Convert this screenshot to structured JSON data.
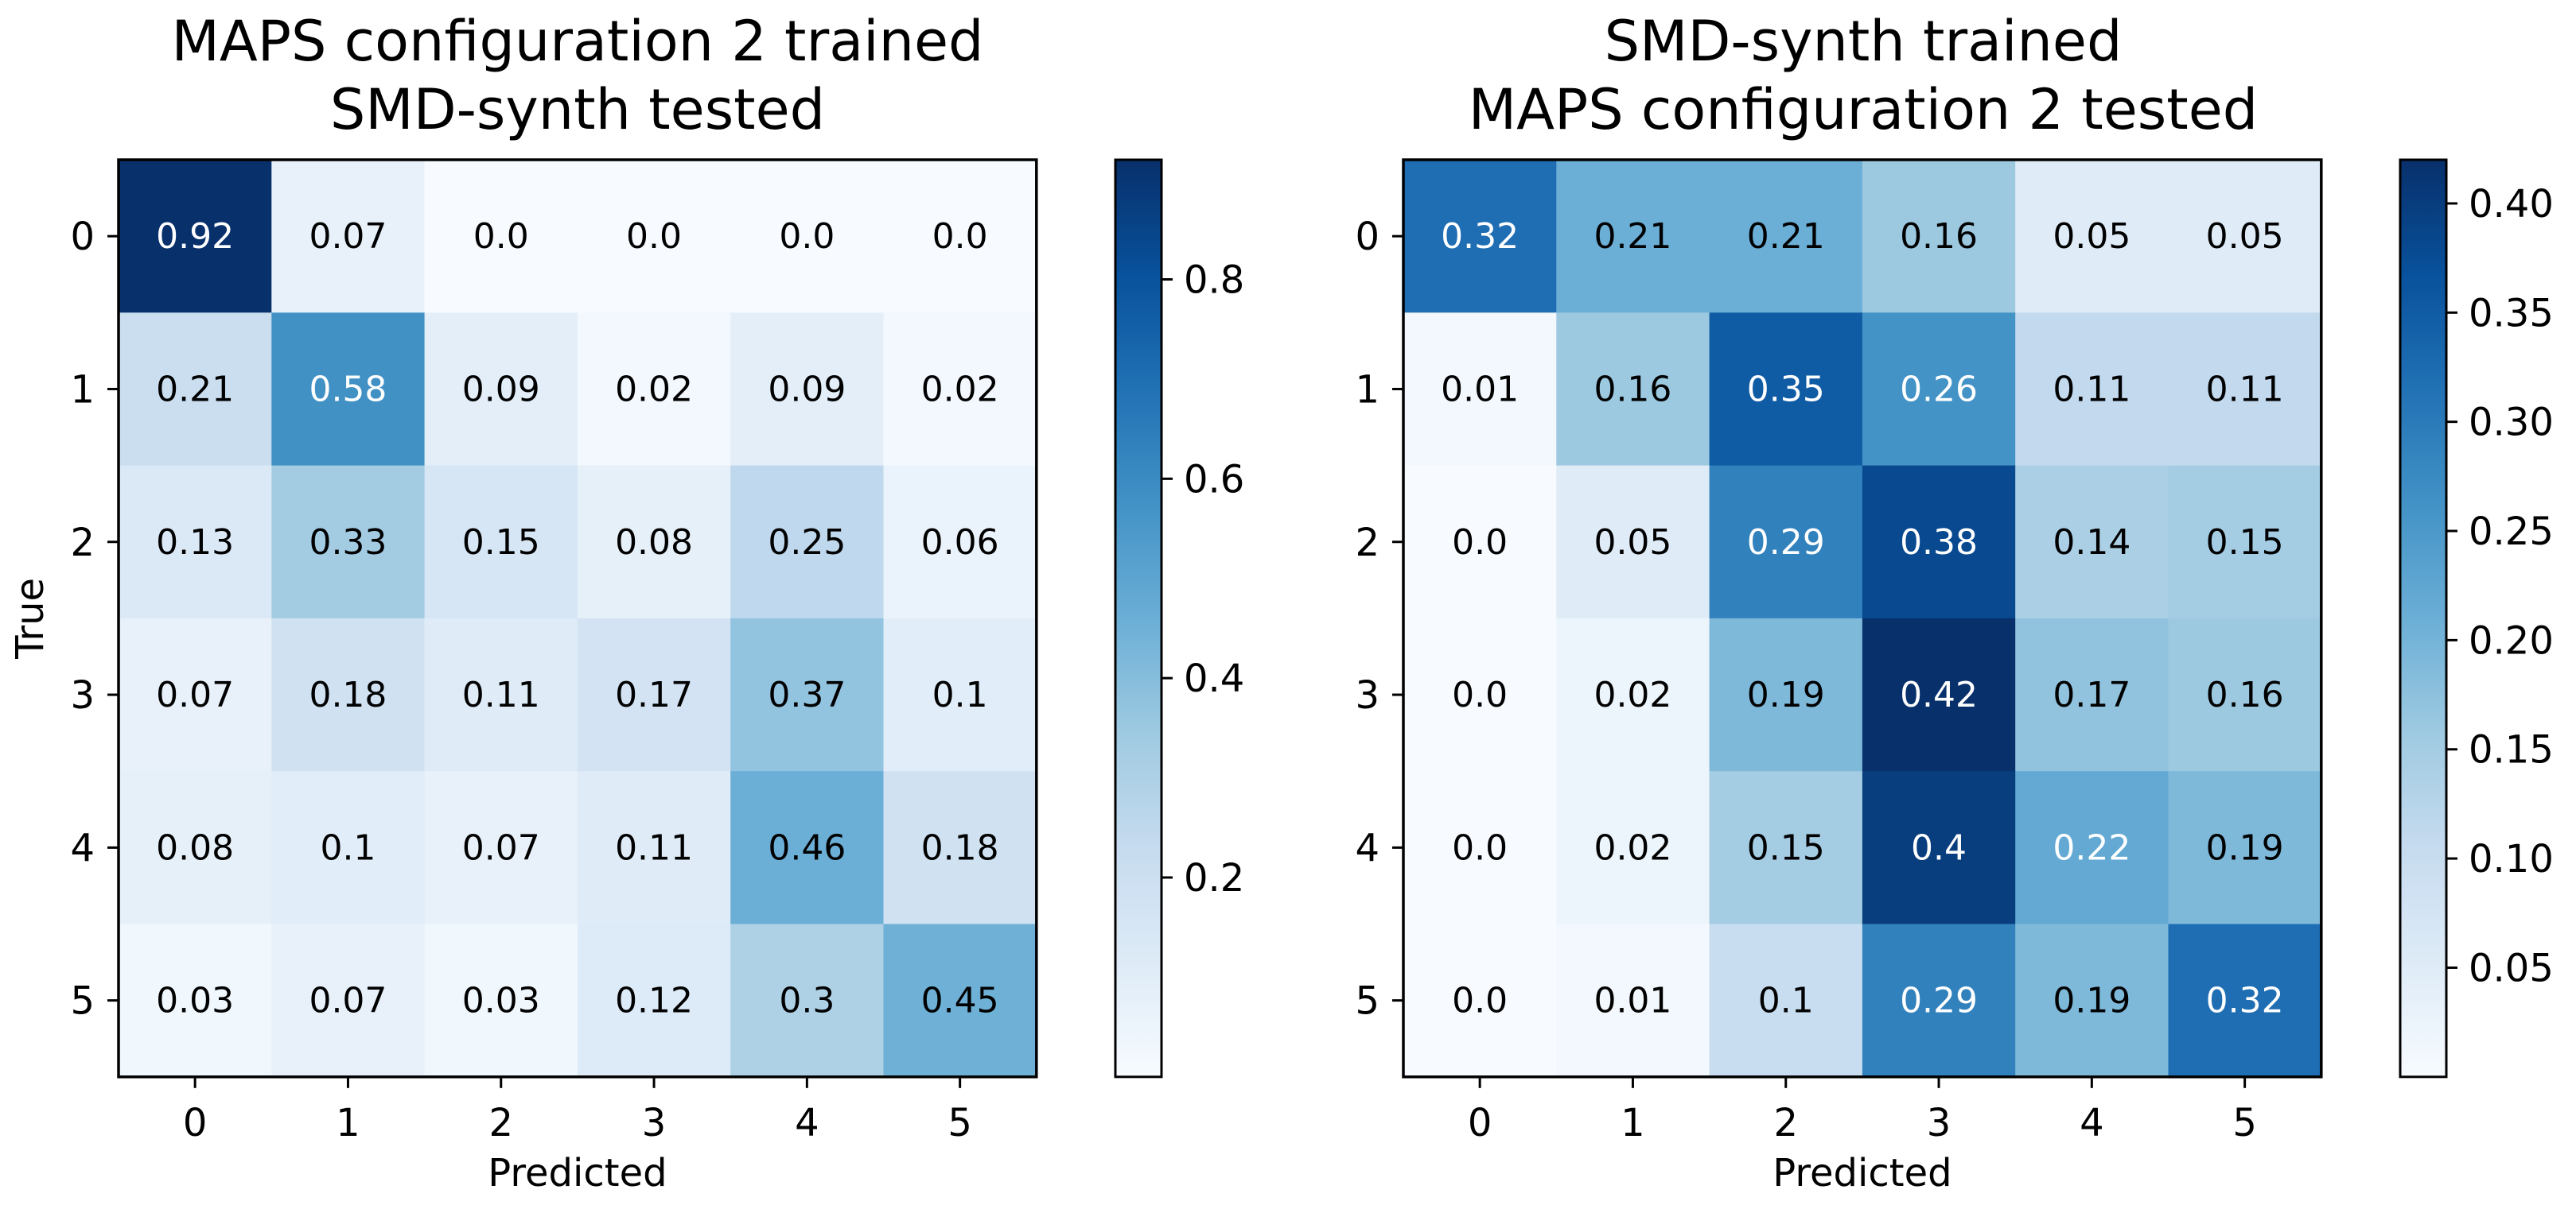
{
  "chart_data": [
    {
      "type": "heatmap",
      "title_lines": [
        "MAPS configuration 2 trained",
        "SMD-synth tested"
      ],
      "xlabel": "Predicted",
      "ylabel": "True",
      "x_ticks": [
        "0",
        "1",
        "2",
        "3",
        "4",
        "5"
      ],
      "y_ticks": [
        "0",
        "1",
        "2",
        "3",
        "4",
        "5"
      ],
      "values": [
        [
          0.92,
          0.07,
          0.0,
          0.0,
          0.0,
          0.0
        ],
        [
          0.21,
          0.58,
          0.09,
          0.02,
          0.09,
          0.02
        ],
        [
          0.13,
          0.33,
          0.15,
          0.08,
          0.25,
          0.06
        ],
        [
          0.07,
          0.18,
          0.11,
          0.17,
          0.37,
          0.1
        ],
        [
          0.08,
          0.1,
          0.07,
          0.11,
          0.46,
          0.18
        ],
        [
          0.03,
          0.07,
          0.03,
          0.12,
          0.3,
          0.45
        ]
      ],
      "value_labels": [
        [
          "0.92",
          "0.07",
          "0.0",
          "0.0",
          "0.0",
          "0.0"
        ],
        [
          "0.21",
          "0.58",
          "0.09",
          "0.02",
          "0.09",
          "0.02"
        ],
        [
          "0.13",
          "0.33",
          "0.15",
          "0.08",
          "0.25",
          "0.06"
        ],
        [
          "0.07",
          "0.18",
          "0.11",
          "0.17",
          "0.37",
          "0.1"
        ],
        [
          "0.08",
          "0.1",
          "0.07",
          "0.11",
          "0.46",
          "0.18"
        ],
        [
          "0.03",
          "0.07",
          "0.03",
          "0.12",
          "0.3",
          "0.45"
        ]
      ],
      "color_range": [
        0.0,
        0.92
      ],
      "colorbar_ticks": [
        0.2,
        0.4,
        0.6,
        0.8
      ],
      "colorbar_tick_labels": [
        "0.2",
        "0.4",
        "0.6",
        "0.8"
      ],
      "colormap": "Blues"
    },
    {
      "type": "heatmap",
      "title_lines": [
        "SMD-synth trained",
        "MAPS configuration 2 tested"
      ],
      "xlabel": "Predicted",
      "ylabel": "",
      "x_ticks": [
        "0",
        "1",
        "2",
        "3",
        "4",
        "5"
      ],
      "y_ticks": [
        "0",
        "1",
        "2",
        "3",
        "4",
        "5"
      ],
      "values": [
        [
          0.32,
          0.21,
          0.21,
          0.16,
          0.05,
          0.05
        ],
        [
          0.01,
          0.16,
          0.35,
          0.26,
          0.11,
          0.11
        ],
        [
          0.0,
          0.05,
          0.29,
          0.38,
          0.14,
          0.15
        ],
        [
          0.0,
          0.02,
          0.19,
          0.42,
          0.17,
          0.16
        ],
        [
          0.0,
          0.02,
          0.15,
          0.4,
          0.22,
          0.19
        ],
        [
          0.0,
          0.01,
          0.1,
          0.29,
          0.19,
          0.32
        ]
      ],
      "value_labels": [
        [
          "0.32",
          "0.21",
          "0.21",
          "0.16",
          "0.05",
          "0.05"
        ],
        [
          "0.01",
          "0.16",
          "0.35",
          "0.26",
          "0.11",
          "0.11"
        ],
        [
          "0.0",
          "0.05",
          "0.29",
          "0.38",
          "0.14",
          "0.15"
        ],
        [
          "0.0",
          "0.02",
          "0.19",
          "0.42",
          "0.17",
          "0.16"
        ],
        [
          "0.0",
          "0.02",
          "0.15",
          "0.4",
          "0.22",
          "0.19"
        ],
        [
          "0.0",
          "0.01",
          "0.1",
          "0.29",
          "0.19",
          "0.32"
        ]
      ],
      "color_range": [
        0.0,
        0.42
      ],
      "colorbar_ticks": [
        0.05,
        0.1,
        0.15,
        0.2,
        0.25,
        0.3,
        0.35,
        0.4
      ],
      "colorbar_tick_labels": [
        "0.05",
        "0.10",
        "0.15",
        "0.20",
        "0.25",
        "0.30",
        "0.35",
        "0.40"
      ],
      "colormap": "Blues"
    }
  ]
}
